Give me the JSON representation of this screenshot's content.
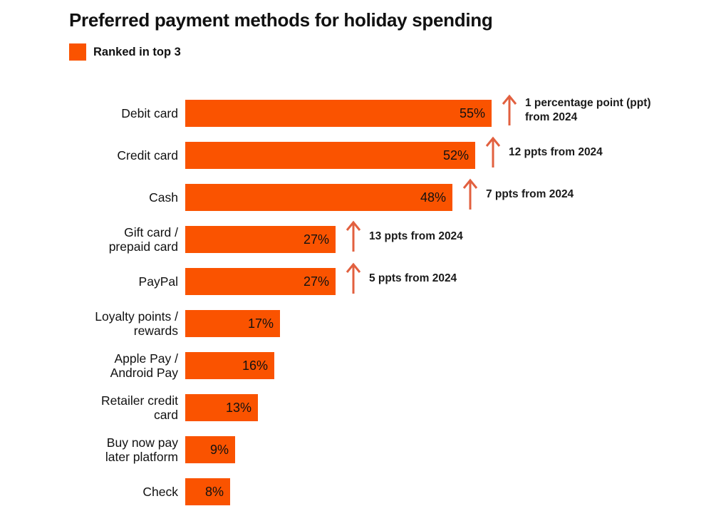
{
  "header": {
    "title": "Preferred payment methods for holiday spending",
    "legend": {
      "label": "Ranked in top 3",
      "swatch_color": "#FA5300"
    }
  },
  "chart_data": {
    "type": "bar",
    "orientation": "horizontal",
    "title": "Preferred payment methods for holiday spending",
    "unit": "%",
    "bar_color": "#FA5300",
    "arrow_color": "#E2603F",
    "legend_position": "top-left",
    "categories": [
      "Debit card",
      "Credit card",
      "Cash",
      "Gift card / prepaid card",
      "PayPal",
      "Loyalty points / rewards",
      "Apple Pay / Android Pay",
      "Retailer credit card",
      "Buy now pay later platform",
      "Check"
    ],
    "values": [
      55,
      52,
      48,
      27,
      27,
      17,
      16,
      13,
      9,
      8
    ],
    "rows": [
      {
        "label": "Debit card",
        "label_lines": [
          "Debit card"
        ],
        "value": 55,
        "value_label": "55%",
        "change": "1 percentage point (ppt) from 2024",
        "change_lines": [
          "1 percentage point (ppt)",
          "from 2024"
        ]
      },
      {
        "label": "Credit card",
        "label_lines": [
          "Credit card"
        ],
        "value": 52,
        "value_label": "52%",
        "change": "12 ppts from 2024",
        "change_lines": [
          "12 ppts from 2024"
        ]
      },
      {
        "label": "Cash",
        "label_lines": [
          "Cash"
        ],
        "value": 48,
        "value_label": "48%",
        "change": "7 ppts from 2024",
        "change_lines": [
          "7 ppts from 2024"
        ]
      },
      {
        "label": "Gift card / prepaid card",
        "label_lines": [
          "Gift card /",
          "prepaid card"
        ],
        "value": 27,
        "value_label": "27%",
        "change": "13 ppts from 2024",
        "change_lines": [
          "13 ppts from 2024"
        ]
      },
      {
        "label": "PayPal",
        "label_lines": [
          "PayPal"
        ],
        "value": 27,
        "value_label": "27%",
        "change": "5 ppts from 2024",
        "change_lines": [
          "5 ppts from 2024"
        ]
      },
      {
        "label": "Loyalty points / rewards",
        "label_lines": [
          "Loyalty points /",
          "rewards"
        ],
        "value": 17,
        "value_label": "17%"
      },
      {
        "label": "Apple Pay / Android Pay",
        "label_lines": [
          "Apple Pay /",
          "Android Pay"
        ],
        "value": 16,
        "value_label": "16%"
      },
      {
        "label": "Retailer credit card",
        "label_lines": [
          "Retailer credit",
          "card"
        ],
        "value": 13,
        "value_label": "13%"
      },
      {
        "label": "Buy now pay later platform",
        "label_lines": [
          "Buy now pay",
          "later platform"
        ],
        "value": 9,
        "value_label": "9%"
      },
      {
        "label": "Check",
        "label_lines": [
          "Check"
        ],
        "value": 8,
        "value_label": "8%"
      }
    ]
  }
}
